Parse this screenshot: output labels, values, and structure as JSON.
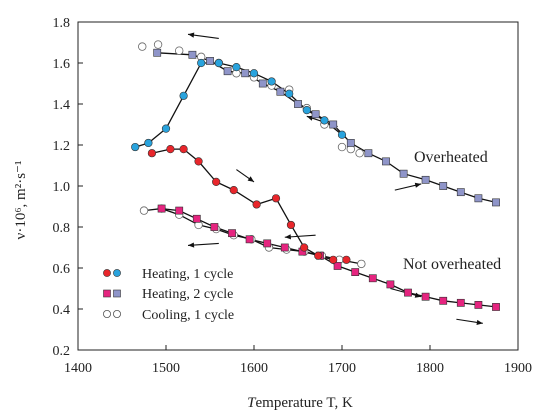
{
  "chart_data": {
    "type": "scatter",
    "xlabel": "Temperature T, K",
    "ylabel": "ν·10⁶, m²·s⁻¹",
    "xlim": [
      1400,
      1900
    ],
    "ylim": [
      0.2,
      1.8
    ],
    "xticks": [
      1400,
      1500,
      1600,
      1700,
      1800,
      1900
    ],
    "yticks": [
      0.2,
      0.4,
      0.6,
      0.8,
      1.0,
      1.2,
      1.4,
      1.6,
      1.8
    ],
    "ytick_labels": [
      "0.2",
      "0.4",
      "0.6",
      "0.8",
      "1.0",
      "1.2",
      "1.4",
      "1.6",
      "1.8"
    ],
    "grid": false,
    "colors": {
      "heating_1_overheated": "#29a3dd",
      "heating_1_not_overheated": "#e8262b",
      "heating_2_overheated": "#8f95c9",
      "heating_2_not_overheated": "#e5247f",
      "cooling": "#ffffff",
      "line": "#111111"
    },
    "annotations": [
      "Overheated",
      "Not overheated"
    ],
    "legend": {
      "position": "bottom-left",
      "entries": [
        {
          "label": "Heating, 1 cycle",
          "colors": [
            "#e8262b",
            "#29a3dd"
          ],
          "marker": "circle"
        },
        {
          "label": "Heating, 2 cycle",
          "colors": [
            "#e5247f",
            "#8f95c9"
          ],
          "marker": "square"
        },
        {
          "label": "Cooling, 1 cycle",
          "colors": [
            "#ffffff",
            "#ffffff"
          ],
          "marker": "circle"
        }
      ]
    },
    "series": [
      {
        "id": "overheated_heating_1",
        "marker": "circle",
        "color": "#29a3dd",
        "line": true,
        "x": [
          1465,
          1480,
          1500,
          1520,
          1540,
          1560,
          1580,
          1600,
          1620,
          1640,
          1660,
          1680,
          1700
        ],
        "y": [
          1.19,
          1.21,
          1.28,
          1.44,
          1.6,
          1.6,
          1.58,
          1.55,
          1.51,
          1.45,
          1.37,
          1.32,
          1.25
        ]
      },
      {
        "id": "overheated_heating_2",
        "marker": "square",
        "color": "#8f95c9",
        "line": true,
        "x": [
          1490,
          1530,
          1550,
          1570,
          1590,
          1610,
          1630,
          1650,
          1670,
          1690,
          1710,
          1730,
          1750,
          1770,
          1795,
          1815,
          1835,
          1855,
          1875
        ],
        "y": [
          1.65,
          1.64,
          1.61,
          1.56,
          1.55,
          1.5,
          1.46,
          1.4,
          1.35,
          1.3,
          1.21,
          1.16,
          1.12,
          1.06,
          1.03,
          1.0,
          0.97,
          0.94,
          0.92
        ]
      },
      {
        "id": "overheated_cooling",
        "marker": "circle",
        "color": "#ffffff",
        "line": false,
        "x": [
          1473,
          1491,
          1515,
          1540,
          1560,
          1580,
          1600,
          1620,
          1640,
          1660,
          1680,
          1700,
          1710,
          1720
        ],
        "y": [
          1.68,
          1.69,
          1.66,
          1.63,
          1.6,
          1.55,
          1.53,
          1.49,
          1.47,
          1.38,
          1.3,
          1.19,
          1.18,
          1.16
        ]
      },
      {
        "id": "not_overheated_heating_1",
        "marker": "circle",
        "color": "#e8262b",
        "line": true,
        "x": [
          1484,
          1505,
          1520,
          1537,
          1557,
          1577,
          1603,
          1625,
          1642,
          1657,
          1673,
          1690,
          1705
        ],
        "y": [
          1.16,
          1.18,
          1.18,
          1.12,
          1.02,
          0.98,
          0.91,
          0.94,
          0.81,
          0.7,
          0.66,
          0.64,
          0.64
        ]
      },
      {
        "id": "not_overheated_heating_2",
        "marker": "square",
        "color": "#e5247f",
        "line": true,
        "x": [
          1495,
          1515,
          1535,
          1555,
          1575,
          1595,
          1615,
          1635,
          1655,
          1675,
          1695,
          1715,
          1735,
          1755,
          1775,
          1795,
          1815,
          1835,
          1855,
          1875
        ],
        "y": [
          0.89,
          0.88,
          0.84,
          0.8,
          0.77,
          0.74,
          0.72,
          0.7,
          0.68,
          0.66,
          0.61,
          0.58,
          0.55,
          0.52,
          0.48,
          0.46,
          0.44,
          0.43,
          0.42,
          0.41
        ]
      },
      {
        "id": "not_overheated_cooling",
        "marker": "circle",
        "color": "#ffffff",
        "line": true,
        "x": [
          1475,
          1495,
          1515,
          1537,
          1557,
          1577,
          1597,
          1617,
          1637,
          1657,
          1677,
          1697,
          1722
        ],
        "y": [
          0.88,
          0.89,
          0.86,
          0.81,
          0.79,
          0.76,
          0.74,
          0.7,
          0.69,
          0.68,
          0.66,
          0.64,
          0.62
        ]
      }
    ],
    "arrows": [
      {
        "from": [
          1560,
          1.72
        ],
        "to": [
          1525,
          1.74
        ]
      },
      {
        "from": [
          1580,
          1.08
        ],
        "to": [
          1600,
          1.02
        ]
      },
      {
        "from": [
          1695,
          1.29
        ],
        "to": [
          1660,
          1.34
        ]
      },
      {
        "from": [
          1760,
          0.98
        ],
        "to": [
          1790,
          1.01
        ]
      },
      {
        "from": [
          1560,
          0.72
        ],
        "to": [
          1525,
          0.71
        ]
      },
      {
        "from": [
          1670,
          0.76
        ],
        "to": [
          1635,
          0.75
        ]
      },
      {
        "from": [
          1755,
          0.5
        ],
        "to": [
          1790,
          0.46
        ]
      },
      {
        "from": [
          1830,
          0.35
        ],
        "to": [
          1860,
          0.33
        ]
      }
    ]
  }
}
